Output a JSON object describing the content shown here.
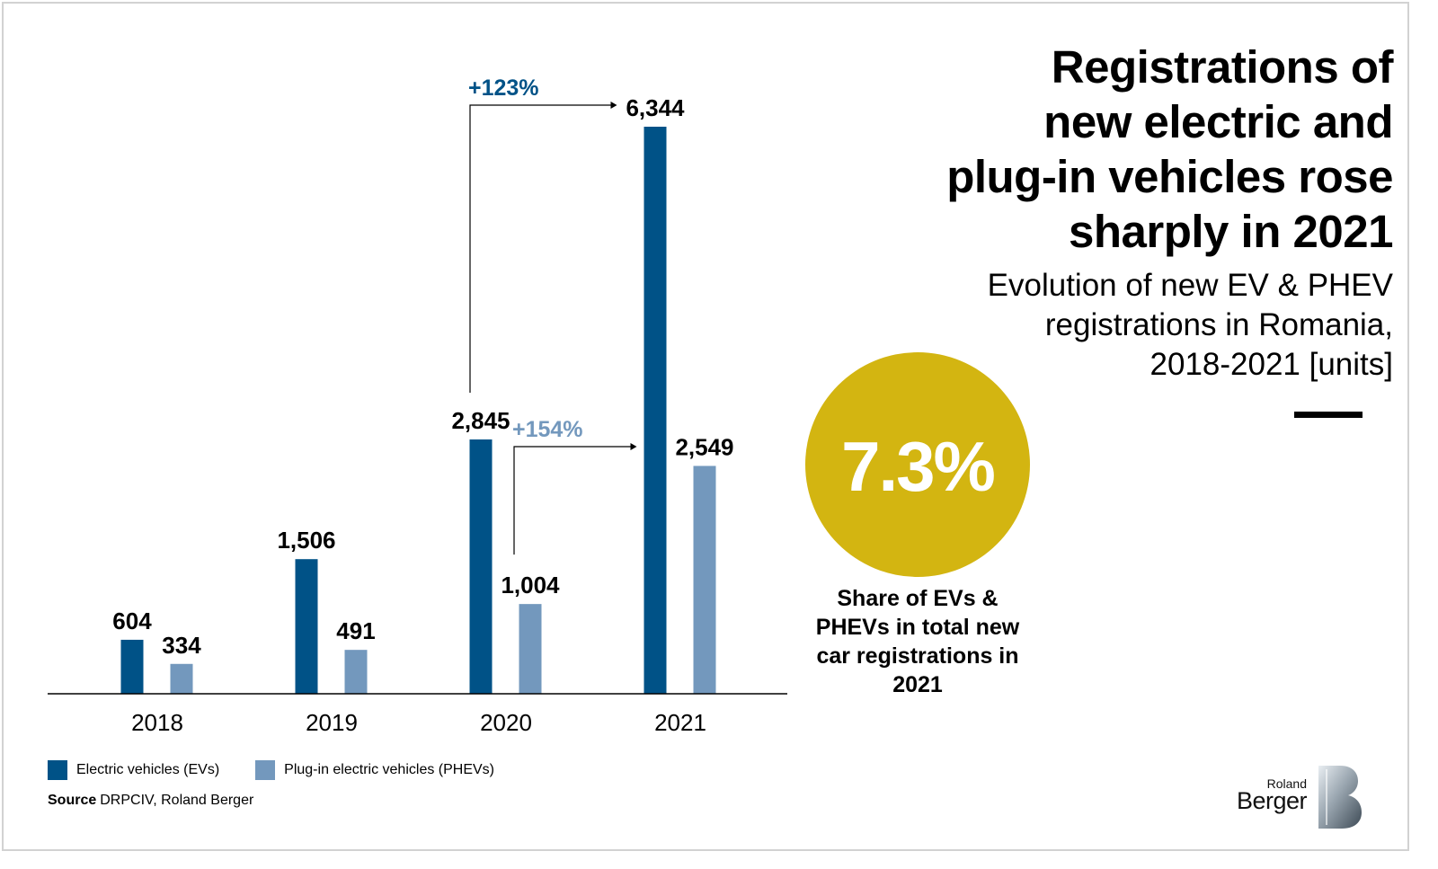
{
  "title": "Registrations of new electric and plug-in vehicles rose sharply in 2021",
  "title_lines": [
    "Registrations of",
    "new electric and",
    "plug-in vehicles rose",
    "sharply in 2021"
  ],
  "subtitle_lines": [
    "Evolution of new EV & PHEV",
    "registrations in Romania,",
    "2018-2021 [units]"
  ],
  "highlight": {
    "value": "7.3%",
    "caption_lines": [
      "Share of EVs &",
      "PHEVs in total new",
      "car registrations in",
      "2021"
    ]
  },
  "source": {
    "label": "Source",
    "text": "DRPCIV, Roland Berger"
  },
  "brand": {
    "small": "Roland",
    "big": "Berger"
  },
  "colors": {
    "ev": "#005287",
    "phev": "#7398bd",
    "gold": "#d3b511",
    "axis": "#000000",
    "growth_ev": "#005287",
    "growth_phev": "#7398bd"
  },
  "chart_data": {
    "type": "bar",
    "categories": [
      "2018",
      "2019",
      "2020",
      "2021"
    ],
    "series": [
      {
        "name": "Electric vehicles (EVs)",
        "values": [
          604,
          1506,
          2845,
          6344
        ],
        "labels": [
          "604",
          "1,506",
          "2,845",
          "6,344"
        ]
      },
      {
        "name": "Plug-in electric vehicles (PHEVs)",
        "values": [
          334,
          491,
          1004,
          2549
        ],
        "labels": [
          "334",
          "491",
          "1,004",
          "2,549"
        ]
      }
    ],
    "ylim": [
      0,
      6344
    ],
    "annotations": [
      {
        "text": "+123%",
        "series": 0,
        "from": "2020",
        "to": "2021"
      },
      {
        "text": "+154%",
        "series": 1,
        "from": "2020",
        "to": "2021"
      }
    ],
    "legend": "bottom-left",
    "grid": false
  }
}
